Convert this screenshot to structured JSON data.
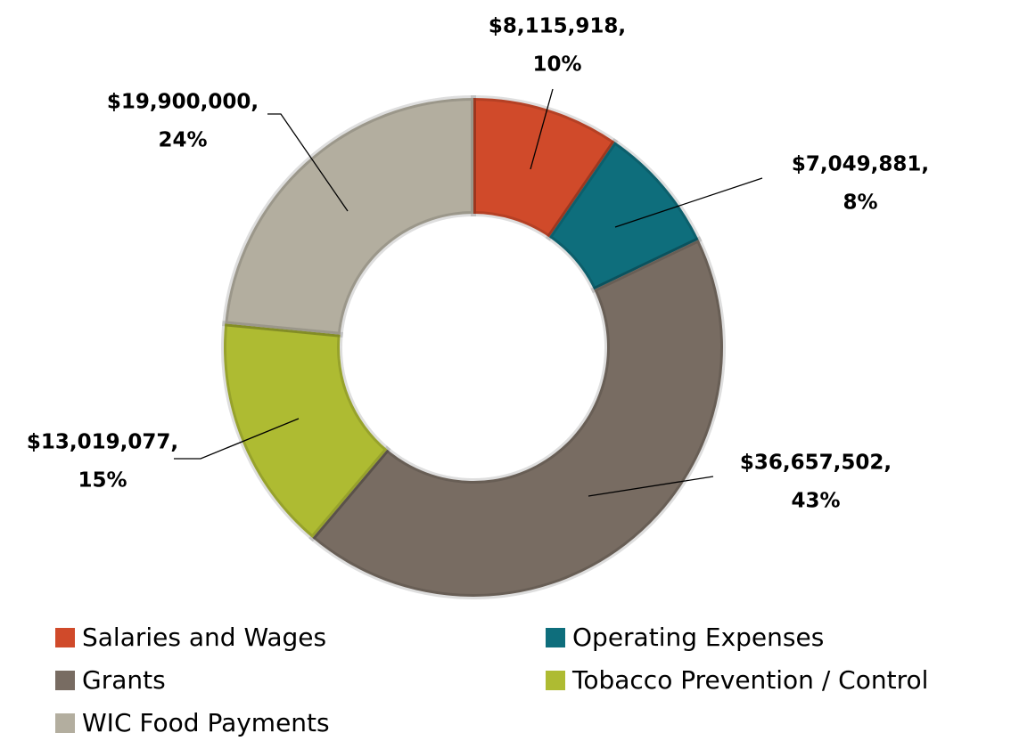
{
  "chart_data": {
    "type": "donut",
    "categories": [
      "Salaries and Wages",
      "Operating Expenses",
      "Grants",
      "Tobacco Prevention / Control",
      "WIC Food Payments"
    ],
    "values": [
      8115918,
      7049881,
      36657502,
      13019077,
      19900000
    ],
    "value_labels": [
      [
        "$8,115,918,",
        "10%"
      ],
      [
        "$7,049,881,",
        "8%"
      ],
      [
        "$36,657,502,",
        "43%"
      ],
      [
        "$13,019,077,",
        "15%"
      ],
      [
        "$19,900,000,",
        "24%"
      ]
    ],
    "colors": [
      "#d04a2a",
      "#0e6e7c",
      "#786c62",
      "#aebb32",
      "#b3ae9f"
    ],
    "legend": "bottom"
  }
}
